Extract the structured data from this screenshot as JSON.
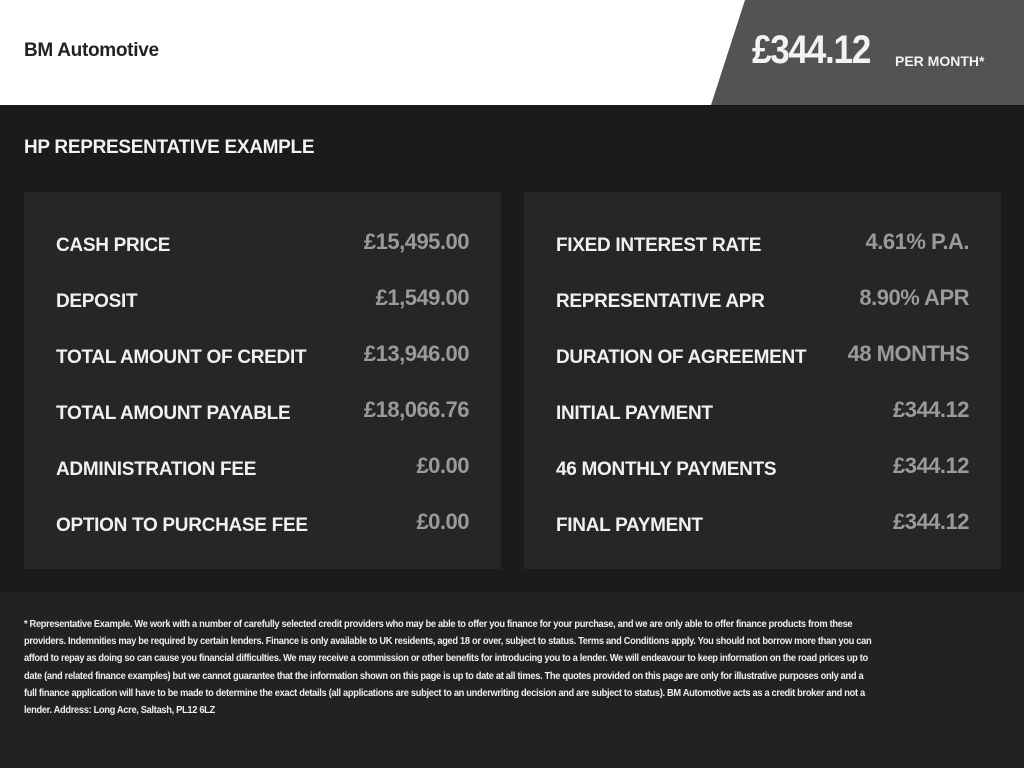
{
  "header": {
    "brand": "BM Automotive",
    "price": "£344.12",
    "per_month": "PER MONTH*"
  },
  "section_title": "HP REPRESENTATIVE EXAMPLE",
  "left": [
    {
      "label": "CASH PRICE",
      "value": "£15,495.00"
    },
    {
      "label": "DEPOSIT",
      "value": "£1,549.00"
    },
    {
      "label": "TOTAL AMOUNT OF CREDIT",
      "value": "£13,946.00"
    },
    {
      "label": "TOTAL AMOUNT PAYABLE",
      "value": "£18,066.76"
    },
    {
      "label": "ADMINISTRATION FEE",
      "value": "£0.00"
    },
    {
      "label": "OPTION TO PURCHASE FEE",
      "value": "£0.00"
    }
  ],
  "right": [
    {
      "label": "FIXED INTEREST RATE",
      "value": "4.61% P.A."
    },
    {
      "label": "REPRESENTATIVE APR",
      "value": "8.90% APR"
    },
    {
      "label": "DURATION OF AGREEMENT",
      "value": "48 MONTHS"
    },
    {
      "label": "INITIAL PAYMENT",
      "value": "£344.12"
    },
    {
      "label": "46 MONTHLY PAYMENTS",
      "value": "£344.12"
    },
    {
      "label": "FINAL PAYMENT",
      "value": "£344.12"
    }
  ],
  "disclaimer_lines": [
    "* Representative Example. We work with a number of carefully selected credit providers who may be able to offer you finance for your purchase, and we are only able to offer finance products from these",
    "providers. Indemnities may be required by certain lenders. Finance is only available to UK residents, aged 18 or over, subject to status. Terms and Conditions apply. You should not borrow more than you can",
    "afford to repay as doing so can cause you financial difficulties. We may receive a commission or other benefits for introducing you to a lender. We will endeavour to keep information on the road prices up to",
    "date (and related finance examples) but we cannot guarantee that the information shown on this page is up to date at all times. The quotes provided on this page are only for illustrative purposes only and a",
    "full finance application will have to be made to determine the exact details (all applications are subject to an underwriting decision and are subject to status). BM Automotive acts as a credit broker and not a",
    "lender. Address: Long Acre, Saltash, PL12 6LZ"
  ]
}
